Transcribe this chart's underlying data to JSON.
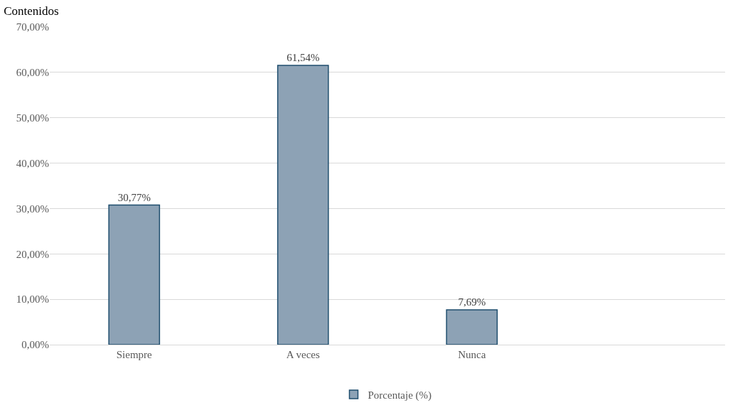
{
  "chart_data": {
    "type": "bar",
    "title": "Contenidos",
    "categories": [
      "Siempre",
      "A veces",
      "Nunca",
      null
    ],
    "series": [
      {
        "name": "Porcentaje (%)",
        "color": "#8da2b5",
        "values": [
          30.77,
          61.54,
          7.69,
          null
        ],
        "value_labels": [
          "30,77%",
          "61,54%",
          "7,69%",
          null
        ]
      }
    ],
    "ylim": [
      0,
      70
    ],
    "yticks": [
      {
        "value": 0,
        "label": "0,00%"
      },
      {
        "value": 10,
        "label": "10,00%"
      },
      {
        "value": 20,
        "label": "20,00%"
      },
      {
        "value": 30,
        "label": "30,00%"
      },
      {
        "value": 40,
        "label": "40,00%"
      },
      {
        "value": 50,
        "label": "50,00%"
      },
      {
        "value": 60,
        "label": "60,00%"
      },
      {
        "value": 70,
        "label": "70,00%"
      }
    ],
    "grid": "y",
    "legend": "bottom"
  }
}
